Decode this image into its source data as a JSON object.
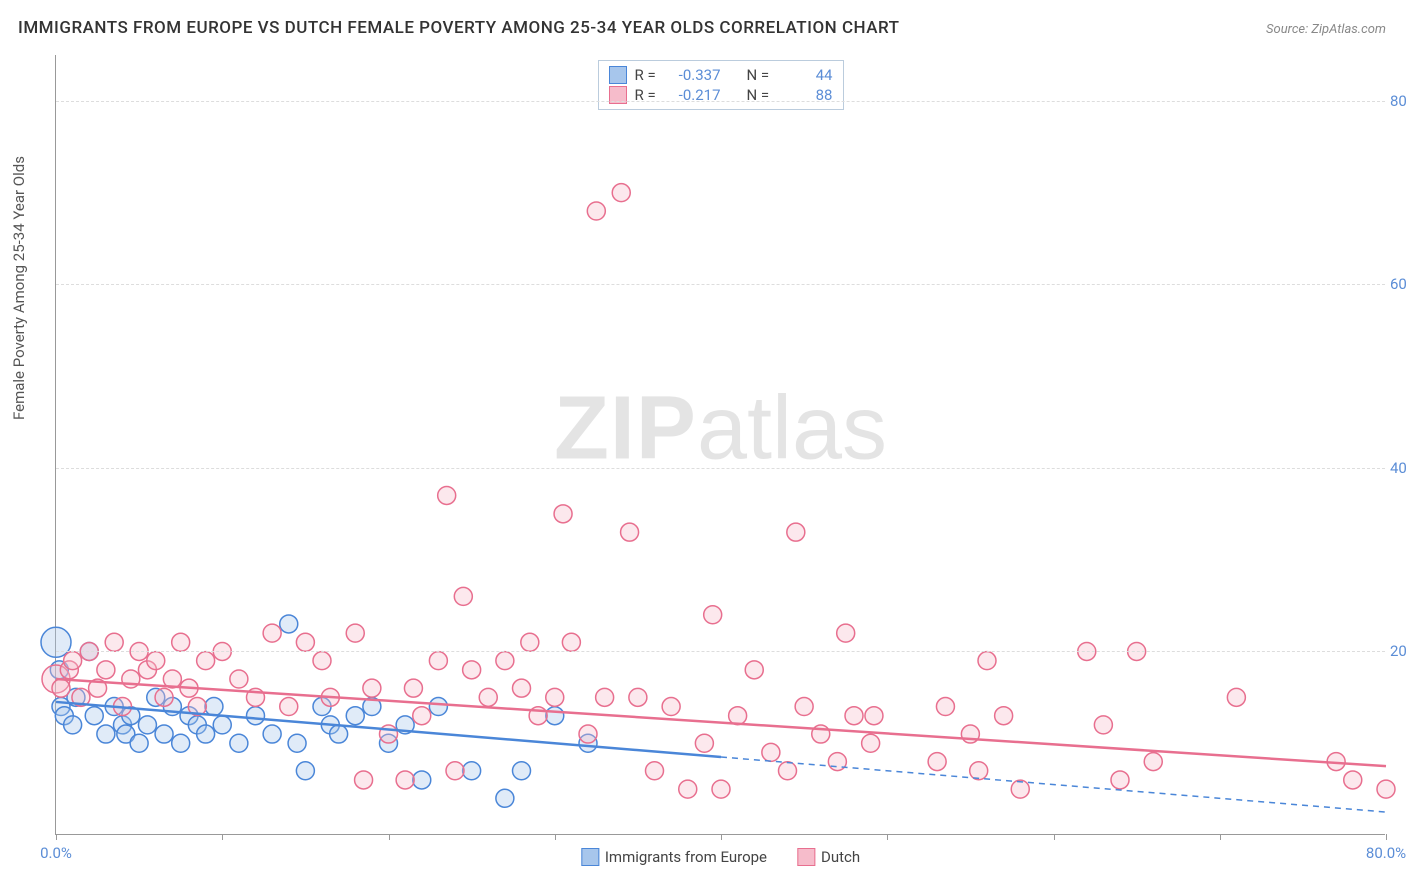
{
  "title": "IMMIGRANTS FROM EUROPE VS DUTCH FEMALE POVERTY AMONG 25-34 YEAR OLDS CORRELATION CHART",
  "source": "Source: ZipAtlas.com",
  "y_axis_label": "Female Poverty Among 25-34 Year Olds",
  "watermark_a": "ZIP",
  "watermark_b": "atlas",
  "chart": {
    "type": "scatter",
    "xlim": [
      0,
      80
    ],
    "ylim": [
      0,
      85
    ],
    "x_ticks": [
      0,
      10,
      20,
      30,
      40,
      50,
      60,
      70,
      80
    ],
    "x_tick_labels": {
      "0": "0.0%",
      "80": "80.0%"
    },
    "y_ticks": [
      20,
      40,
      60,
      80
    ],
    "y_tick_format": "%.1f%%",
    "grid_color": "#dddddd",
    "axis_color": "#999999",
    "background_color": "#ffffff",
    "tick_label_color": "#5b8dd6",
    "marker_radius": 9,
    "marker_radius_large": 15,
    "marker_stroke_width": 1.5,
    "marker_fill_opacity": 0.35,
    "trend_line_width": 2.5,
    "series": [
      {
        "id": "europe",
        "label": "Immigrants from Europe",
        "color_stroke": "#4a86d8",
        "color_fill": "#a7c6ec",
        "r_value": "-0.337",
        "n_value": "44",
        "trend": {
          "x1": 0,
          "y1": 14.5,
          "x2": 40,
          "y2": 8.5,
          "extend_x2": 80,
          "extend_y2": 2.5
        },
        "points": [
          {
            "x": 0,
            "y": 21,
            "r": 15
          },
          {
            "x": 0.2,
            "y": 18
          },
          {
            "x": 0.3,
            "y": 14
          },
          {
            "x": 0.5,
            "y": 13
          },
          {
            "x": 1,
            "y": 12
          },
          {
            "x": 1.2,
            "y": 15
          },
          {
            "x": 2,
            "y": 20
          },
          {
            "x": 2.3,
            "y": 13
          },
          {
            "x": 3,
            "y": 11
          },
          {
            "x": 3.5,
            "y": 14
          },
          {
            "x": 4,
            "y": 12
          },
          {
            "x": 4.2,
            "y": 11
          },
          {
            "x": 4.5,
            "y": 13
          },
          {
            "x": 5,
            "y": 10
          },
          {
            "x": 5.5,
            "y": 12
          },
          {
            "x": 6,
            "y": 15
          },
          {
            "x": 6.5,
            "y": 11
          },
          {
            "x": 7,
            "y": 14
          },
          {
            "x": 7.5,
            "y": 10
          },
          {
            "x": 8,
            "y": 13
          },
          {
            "x": 8.5,
            "y": 12
          },
          {
            "x": 9,
            "y": 11
          },
          {
            "x": 9.5,
            "y": 14
          },
          {
            "x": 10,
            "y": 12
          },
          {
            "x": 11,
            "y": 10
          },
          {
            "x": 12,
            "y": 13
          },
          {
            "x": 13,
            "y": 11
          },
          {
            "x": 14,
            "y": 23
          },
          {
            "x": 14.5,
            "y": 10
          },
          {
            "x": 15,
            "y": 7
          },
          {
            "x": 16,
            "y": 14
          },
          {
            "x": 16.5,
            "y": 12
          },
          {
            "x": 17,
            "y": 11
          },
          {
            "x": 18,
            "y": 13
          },
          {
            "x": 19,
            "y": 14
          },
          {
            "x": 20,
            "y": 10
          },
          {
            "x": 21,
            "y": 12
          },
          {
            "x": 22,
            "y": 6
          },
          {
            "x": 23,
            "y": 14
          },
          {
            "x": 25,
            "y": 7
          },
          {
            "x": 27,
            "y": 4
          },
          {
            "x": 28,
            "y": 7
          },
          {
            "x": 30,
            "y": 13
          },
          {
            "x": 32,
            "y": 10
          }
        ]
      },
      {
        "id": "dutch",
        "label": "Dutch",
        "color_stroke": "#e86f8f",
        "color_fill": "#f6bccb",
        "r_value": "-0.217",
        "n_value": "88",
        "trend": {
          "x1": 0,
          "y1": 17,
          "x2": 80,
          "y2": 7.5
        },
        "points": [
          {
            "x": 0,
            "y": 17,
            "r": 14
          },
          {
            "x": 0.3,
            "y": 16
          },
          {
            "x": 0.8,
            "y": 18
          },
          {
            "x": 1,
            "y": 19
          },
          {
            "x": 1.5,
            "y": 15
          },
          {
            "x": 2,
            "y": 20
          },
          {
            "x": 2.5,
            "y": 16
          },
          {
            "x": 3,
            "y": 18
          },
          {
            "x": 3.5,
            "y": 21
          },
          {
            "x": 4,
            "y": 14
          },
          {
            "x": 4.5,
            "y": 17
          },
          {
            "x": 5,
            "y": 20
          },
          {
            "x": 5.5,
            "y": 18
          },
          {
            "x": 6,
            "y": 19
          },
          {
            "x": 6.5,
            "y": 15
          },
          {
            "x": 7,
            "y": 17
          },
          {
            "x": 7.5,
            "y": 21
          },
          {
            "x": 8,
            "y": 16
          },
          {
            "x": 8.5,
            "y": 14
          },
          {
            "x": 9,
            "y": 19
          },
          {
            "x": 10,
            "y": 20
          },
          {
            "x": 11,
            "y": 17
          },
          {
            "x": 12,
            "y": 15
          },
          {
            "x": 13,
            "y": 22
          },
          {
            "x": 14,
            "y": 14
          },
          {
            "x": 15,
            "y": 21
          },
          {
            "x": 16,
            "y": 19
          },
          {
            "x": 16.5,
            "y": 15
          },
          {
            "x": 18,
            "y": 22
          },
          {
            "x": 18.5,
            "y": 6
          },
          {
            "x": 19,
            "y": 16
          },
          {
            "x": 20,
            "y": 11
          },
          {
            "x": 21,
            "y": 6
          },
          {
            "x": 21.5,
            "y": 16
          },
          {
            "x": 22,
            "y": 13
          },
          {
            "x": 23,
            "y": 19
          },
          {
            "x": 23.5,
            "y": 37
          },
          {
            "x": 24,
            "y": 7
          },
          {
            "x": 24.5,
            "y": 26
          },
          {
            "x": 25,
            "y": 18
          },
          {
            "x": 26,
            "y": 15
          },
          {
            "x": 27,
            "y": 19
          },
          {
            "x": 28,
            "y": 16
          },
          {
            "x": 28.5,
            "y": 21
          },
          {
            "x": 29,
            "y": 13
          },
          {
            "x": 30,
            "y": 15
          },
          {
            "x": 30.5,
            "y": 35
          },
          {
            "x": 31,
            "y": 21
          },
          {
            "x": 32,
            "y": 11
          },
          {
            "x": 32.5,
            "y": 68
          },
          {
            "x": 33,
            "y": 15
          },
          {
            "x": 34,
            "y": 70
          },
          {
            "x": 34.5,
            "y": 33
          },
          {
            "x": 35,
            "y": 15
          },
          {
            "x": 36,
            "y": 7
          },
          {
            "x": 37,
            "y": 14
          },
          {
            "x": 38,
            "y": 5
          },
          {
            "x": 39,
            "y": 10
          },
          {
            "x": 39.5,
            "y": 24
          },
          {
            "x": 40,
            "y": 5
          },
          {
            "x": 41,
            "y": 13
          },
          {
            "x": 42,
            "y": 18
          },
          {
            "x": 43,
            "y": 9
          },
          {
            "x": 44,
            "y": 7
          },
          {
            "x": 44.5,
            "y": 33
          },
          {
            "x": 45,
            "y": 14
          },
          {
            "x": 46,
            "y": 11
          },
          {
            "x": 47,
            "y": 8
          },
          {
            "x": 47.5,
            "y": 22
          },
          {
            "x": 48,
            "y": 13
          },
          {
            "x": 49,
            "y": 10
          },
          {
            "x": 49.2,
            "y": 13
          },
          {
            "x": 53,
            "y": 8
          },
          {
            "x": 53.5,
            "y": 14
          },
          {
            "x": 55,
            "y": 11
          },
          {
            "x": 55.5,
            "y": 7
          },
          {
            "x": 56,
            "y": 19
          },
          {
            "x": 57,
            "y": 13
          },
          {
            "x": 58,
            "y": 5
          },
          {
            "x": 62,
            "y": 20
          },
          {
            "x": 63,
            "y": 12
          },
          {
            "x": 64,
            "y": 6
          },
          {
            "x": 65,
            "y": 20
          },
          {
            "x": 66,
            "y": 8
          },
          {
            "x": 71,
            "y": 15
          },
          {
            "x": 77,
            "y": 8
          },
          {
            "x": 78,
            "y": 6
          },
          {
            "x": 80,
            "y": 5
          }
        ]
      }
    ]
  },
  "legend_top": {
    "r_label": "R =",
    "n_label": "N ="
  },
  "colors": {
    "title": "#333333",
    "source": "#888888",
    "axis_label": "#555555"
  }
}
